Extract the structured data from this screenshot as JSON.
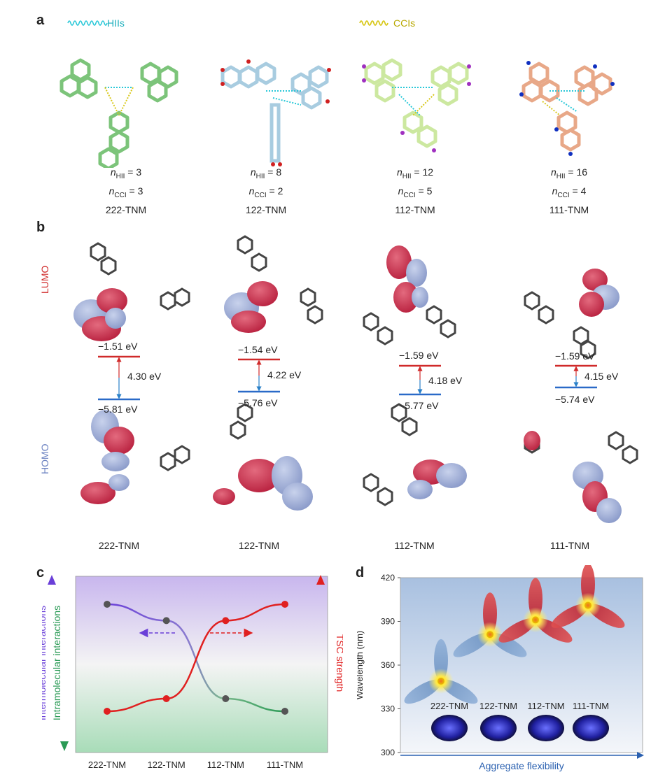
{
  "panel_a": {
    "label": "a",
    "legend": {
      "hii": "HIIs",
      "cci": "CCIs"
    },
    "captions": [
      {
        "n_hii": "n",
        "hii_sub": "HII",
        "hii_val": "= 3",
        "n_cci": "n",
        "cci_sub": "CCI",
        "cci_val": "= 3",
        "name": "222-TNM"
      },
      {
        "n_hii": "n",
        "hii_sub": "HII",
        "hii_val": "= 8",
        "n_cci": "n",
        "cci_sub": "CCI",
        "cci_val": "= 2",
        "name": "122-TNM"
      },
      {
        "n_hii": "n",
        "hii_sub": "HII",
        "hii_val": "= 12",
        "n_cci": "n",
        "cci_sub": "CCI",
        "cci_val": "= 5",
        "name": "112-TNM"
      },
      {
        "n_hii": "n",
        "hii_sub": "HII",
        "hii_val": "= 16",
        "n_cci": "n",
        "cci_sub": "CCI",
        "cci_val": "= 4",
        "name": "111-TNM"
      }
    ]
  },
  "panel_b": {
    "label": "b",
    "lumo_label": "LUMO",
    "homo_label": "HOMO",
    "levels": [
      {
        "lumo": "−1.51 eV",
        "gap": "4.30 eV",
        "homo": "−5.81 eV"
      },
      {
        "lumo": "−1.54 eV",
        "gap": "4.22 eV",
        "homo": "−5.76 eV"
      },
      {
        "lumo": "−1.59 eV",
        "gap": "4.18 eV",
        "homo": "−5.77 eV"
      },
      {
        "lumo": "−1.59 eV",
        "gap": "4.15 eV",
        "homo": "−5.74 eV"
      }
    ],
    "names": [
      "222-TNM",
      "122-TNM",
      "112-TNM",
      "111-TNM"
    ]
  },
  "panel_c": {
    "label": "c",
    "left_axis_1": "Intermolecular interactions",
    "left_axis_2": "Intramolecular interactions",
    "right_axis": "TSC strength"
  },
  "panel_d": {
    "label": "d",
    "inset_names": [
      "222-TNM",
      "122-TNM",
      "112-TNM",
      "111-TNM"
    ]
  },
  "chart_data": [
    {
      "type": "line",
      "panel": "c",
      "categories": [
        "222-TNM",
        "122-TNM",
        "112-TNM",
        "111-TNM"
      ],
      "series": [
        {
          "name": "Intermolecular / Intramolecular interactions",
          "values": [
            0.95,
            0.82,
            0.2,
            0.1
          ],
          "color": "#555555"
        },
        {
          "name": "TSC strength",
          "values": [
            0.1,
            0.2,
            0.82,
            0.95
          ],
          "color": "#e02020"
        }
      ],
      "colors": {
        "inter": "#6a3fd8",
        "intra": "#2a9a55",
        "tsc": "#e02020"
      }
    },
    {
      "type": "scatter",
      "panel": "d",
      "ylabel": "Wavelength (nm)",
      "xlabel": "Aggregate flexibility",
      "ylim": [
        300,
        420
      ],
      "yticks": [
        300,
        330,
        360,
        390,
        420
      ],
      "points": [
        {
          "name": "222-TNM",
          "y": 349
        },
        {
          "name": "122-TNM",
          "y": 381
        },
        {
          "name": "112-TNM",
          "y": 391
        },
        {
          "name": "111-TNM",
          "y": 401
        }
      ]
    }
  ]
}
